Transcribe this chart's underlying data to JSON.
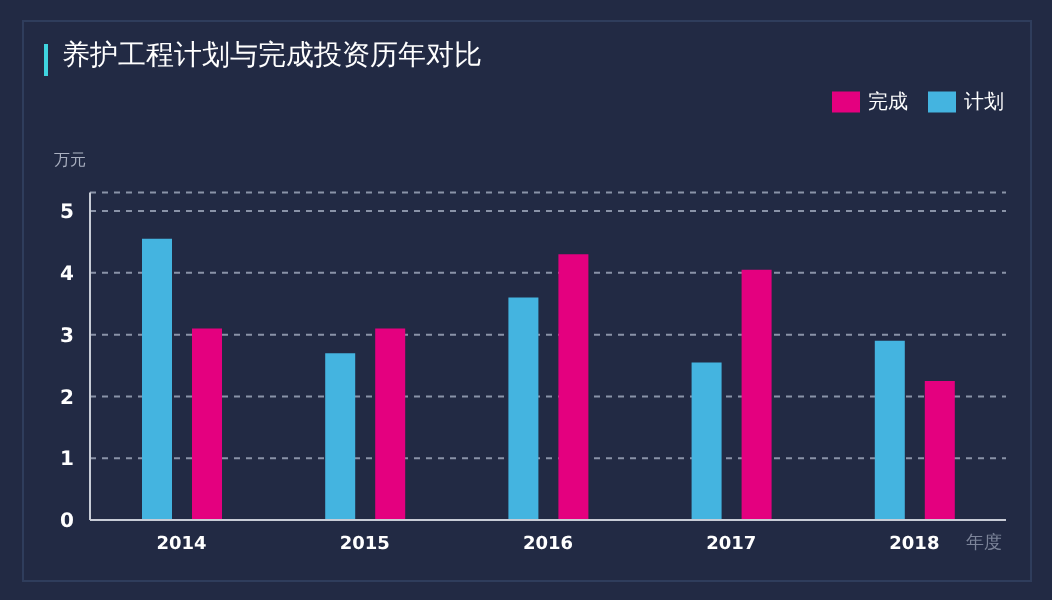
{
  "chart_data": {
    "type": "bar",
    "title": "养护工程计划与完成投资历年对比",
    "ylabel": "万元",
    "xlabel": "年度",
    "categories": [
      "2014",
      "2015",
      "2016",
      "2017",
      "2018"
    ],
    "series": [
      {
        "name": "计划",
        "color": "#44b4e0",
        "values": [
          4.55,
          2.7,
          3.6,
          2.55,
          2.9
        ]
      },
      {
        "name": "完成",
        "color": "#e4007f",
        "values": [
          3.1,
          3.1,
          4.3,
          4.05,
          2.25
        ]
      }
    ],
    "ylim": [
      0,
      5.3
    ],
    "yticks": [
      0,
      1,
      2,
      3,
      4,
      5
    ],
    "grid": "y",
    "legend": "top right"
  }
}
